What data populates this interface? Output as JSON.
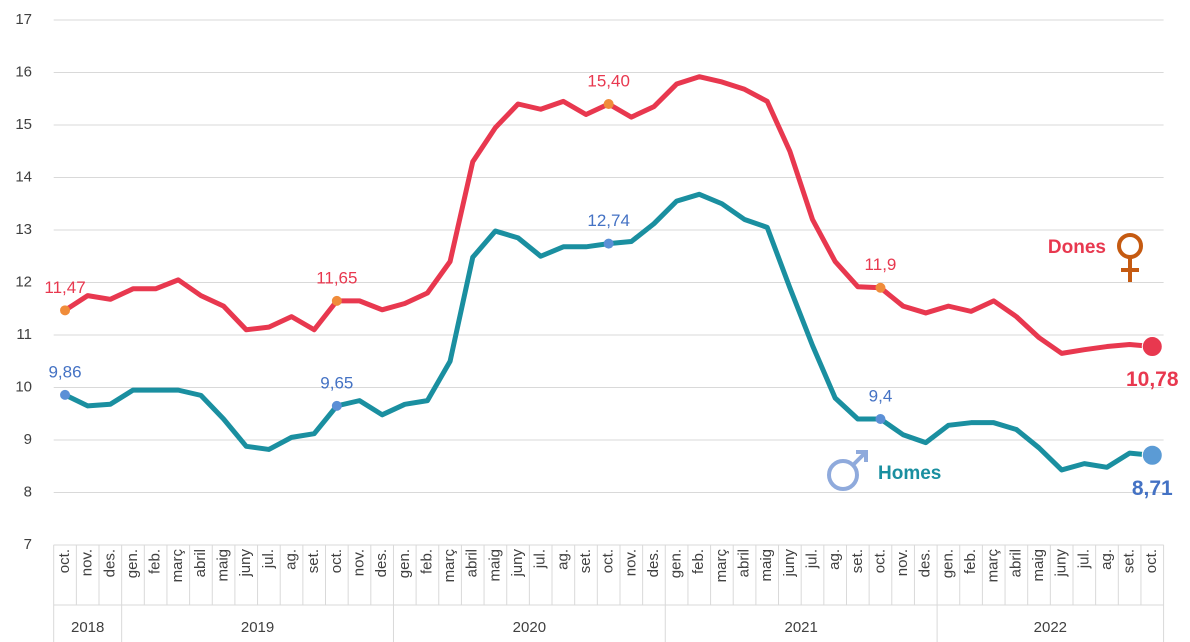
{
  "chart_data": {
    "type": "line",
    "categories": [
      "oct.",
      "nov.",
      "des.",
      "gen.",
      "feb.",
      "març",
      "abril",
      "maig",
      "juny",
      "jul.",
      "ag.",
      "set.",
      "oct.",
      "nov.",
      "des.",
      "gen.",
      "feb.",
      "març",
      "abril",
      "maig",
      "juny",
      "jul.",
      "ag.",
      "set.",
      "oct.",
      "nov.",
      "des.",
      "gen.",
      "feb.",
      "març",
      "abril",
      "maig",
      "juny",
      "jul.",
      "ag.",
      "set.",
      "oct.",
      "nov.",
      "des.",
      "gen.",
      "feb.",
      "març",
      "abril",
      "maig",
      "juny",
      "jul.",
      "ag.",
      "set.",
      "oct."
    ],
    "years": [
      "2018",
      "2019",
      "2020",
      "2021",
      "2022"
    ],
    "ylim": [
      7,
      17
    ],
    "yticks": [
      7,
      8,
      9,
      10,
      11,
      12,
      13,
      14,
      15,
      16,
      17
    ],
    "grid": true,
    "series": [
      {
        "name": "Dones",
        "color": "#e8384f",
        "marker_color": "#f08c3a",
        "values": [
          11.47,
          11.75,
          11.68,
          11.88,
          11.88,
          12.05,
          11.75,
          11.55,
          11.1,
          11.15,
          11.35,
          11.1,
          11.65,
          11.65,
          11.48,
          11.6,
          11.8,
          12.4,
          14.3,
          14.95,
          15.4,
          15.3,
          15.45,
          15.2,
          15.4,
          15.15,
          15.35,
          15.78,
          15.92,
          15.82,
          15.68,
          15.45,
          14.5,
          13.2,
          12.4,
          11.92,
          11.9,
          11.55,
          11.42,
          11.55,
          11.45,
          11.65,
          11.35,
          10.95,
          10.65,
          10.72,
          10.78,
          10.82,
          10.78
        ],
        "value_labels": [
          "11,47",
          null,
          null,
          null,
          null,
          null,
          null,
          null,
          null,
          null,
          null,
          null,
          "11,65",
          null,
          null,
          null,
          null,
          null,
          null,
          null,
          null,
          null,
          null,
          null,
          "15,40",
          null,
          null,
          null,
          null,
          null,
          null,
          null,
          null,
          null,
          null,
          null,
          "11,9",
          null,
          null,
          null,
          null,
          null,
          null,
          null,
          null,
          null,
          null,
          null,
          "10,78"
        ]
      },
      {
        "name": "Homes",
        "color": "#1a8fa0",
        "marker_color": "#5b8fd6",
        "values": [
          9.86,
          9.65,
          9.68,
          9.95,
          9.95,
          9.95,
          9.85,
          9.4,
          8.88,
          8.82,
          9.05,
          9.12,
          9.65,
          9.75,
          9.48,
          9.68,
          9.75,
          10.5,
          12.48,
          12.98,
          12.85,
          12.5,
          12.68,
          12.68,
          12.74,
          12.78,
          13.12,
          13.55,
          13.68,
          13.5,
          13.2,
          13.05,
          11.9,
          10.8,
          9.8,
          9.4,
          9.4,
          9.1,
          8.95,
          9.28,
          9.33,
          9.33,
          9.2,
          8.85,
          8.43,
          8.55,
          8.48,
          8.75,
          8.71
        ],
        "value_labels": [
          "9,86",
          null,
          null,
          null,
          null,
          null,
          null,
          null,
          null,
          null,
          null,
          null,
          "9,65",
          null,
          null,
          null,
          null,
          null,
          null,
          null,
          null,
          null,
          null,
          null,
          "12,74",
          null,
          null,
          null,
          null,
          null,
          null,
          null,
          null,
          null,
          null,
          null,
          "9,4",
          null,
          null,
          null,
          null,
          null,
          null,
          null,
          null,
          null,
          null,
          null,
          "8,71"
        ]
      }
    ]
  }
}
